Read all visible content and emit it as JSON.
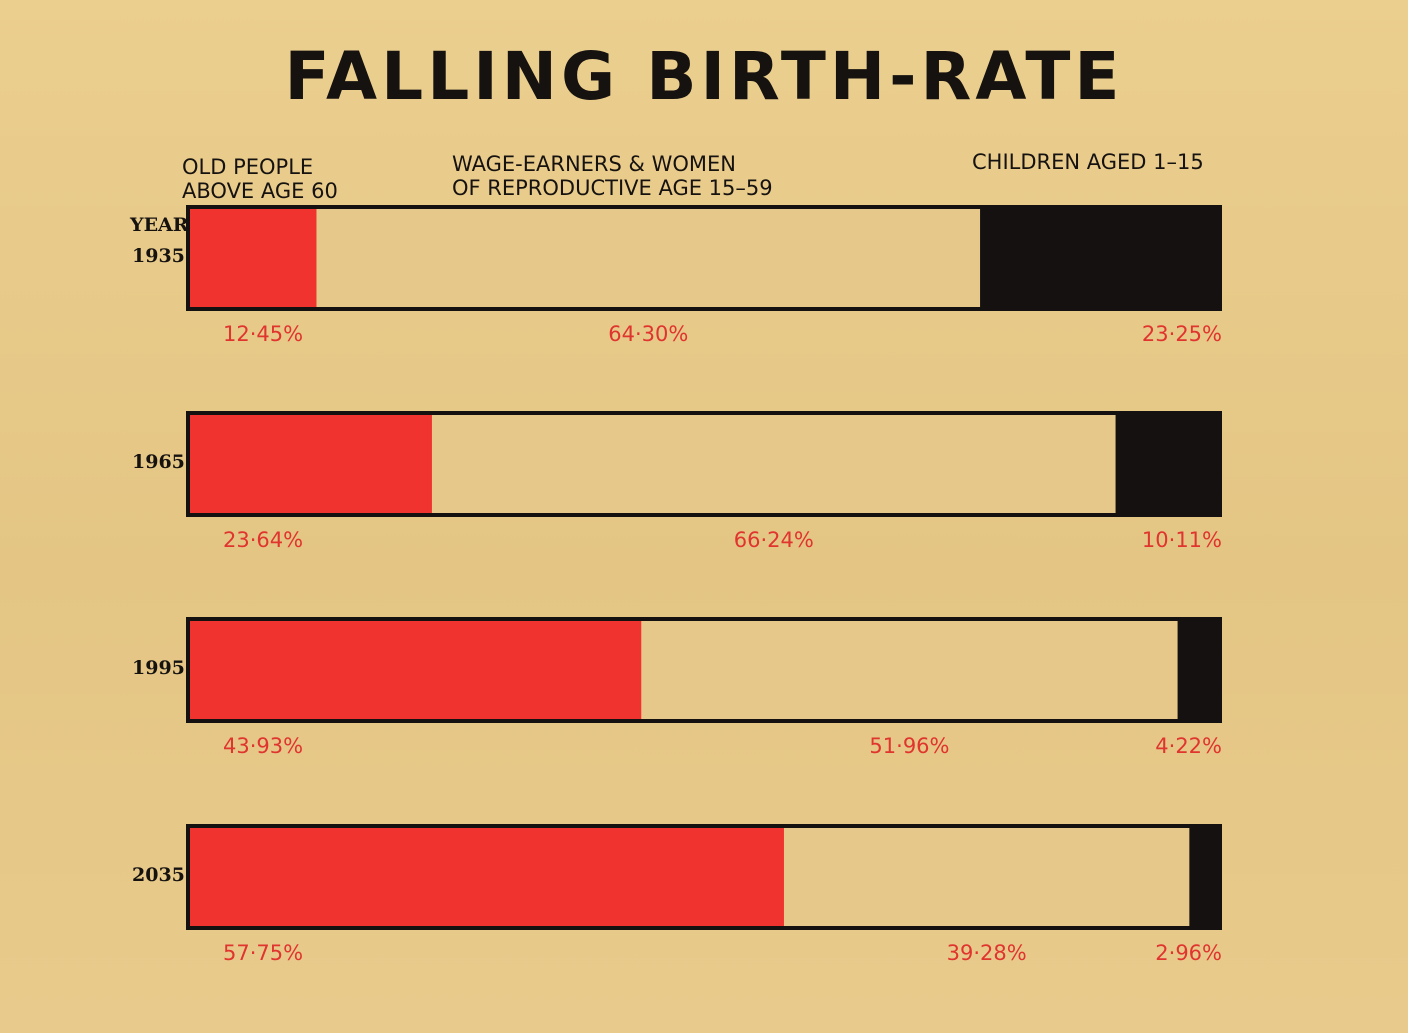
{
  "chart_data": {
    "type": "bar",
    "stacked": true,
    "orientation": "horizontal",
    "title": "FALLING BIRTH-RATE",
    "year_header": "YEAR",
    "categories": [
      "1935",
      "1965",
      "1995",
      "2035"
    ],
    "series": [
      {
        "name": "OLD PEOPLE ABOVE AGE 60",
        "name_lines": [
          "OLD PEOPLE",
          "ABOVE AGE 60"
        ],
        "values": [
          12.45,
          23.64,
          43.93,
          57.75
        ],
        "labels": [
          "12·45%",
          "23·64%",
          "43·93%",
          "57·75%"
        ],
        "color": "#f0332e"
      },
      {
        "name": "WAGE-EARNERS & WOMEN OF REPRODUCTIVE AGE 15-59",
        "name_lines": [
          "WAGE-EARNERS & WOMEN",
          "OF REPRODUCTIVE AGE 15–59"
        ],
        "values": [
          64.3,
          66.24,
          51.96,
          39.28
        ],
        "labels": [
          "64·30%",
          "66·24%",
          "51·96%",
          "39·28%"
        ],
        "color": "#e6c98a"
      },
      {
        "name": "CHILDREN AGED 1-15",
        "name_lines": [
          "CHILDREN AGED 1–15"
        ],
        "values": [
          23.25,
          10.11,
          4.22,
          2.96
        ],
        "labels": [
          "23·25%",
          "10·11%",
          "4·22%",
          "2·96%"
        ],
        "color": "#141110"
      }
    ],
    "label_color": "#e0342f",
    "outline_color": "#141110",
    "xlim": [
      0,
      100
    ]
  }
}
